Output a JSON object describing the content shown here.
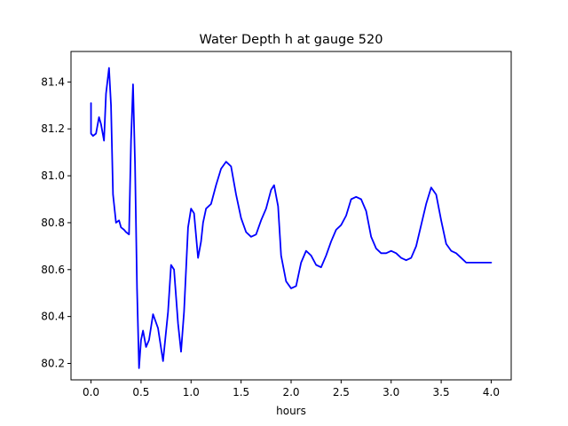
{
  "chart_data": {
    "type": "line",
    "title": "Water Depth h at gauge 520",
    "xlabel": "hours",
    "ylabel": "",
    "xlim": [
      -0.2,
      4.2
    ],
    "ylim": [
      80.13,
      81.53
    ],
    "xticks": [
      0.0,
      0.5,
      1.0,
      1.5,
      2.0,
      2.5,
      3.0,
      3.5,
      4.0
    ],
    "xtick_labels": [
      "0.0",
      "0.5",
      "1.0",
      "1.5",
      "2.0",
      "2.5",
      "3.0",
      "3.5",
      "4.0"
    ],
    "yticks": [
      80.2,
      80.4,
      80.6,
      80.8,
      81.0,
      81.2,
      81.4
    ],
    "ytick_labels": [
      "80.2",
      "80.4",
      "80.6",
      "80.8",
      "81.0",
      "81.2",
      "81.4"
    ],
    "grid": false,
    "color": "#0000ff",
    "series": [
      {
        "name": "",
        "x": [
          0.0,
          0.0,
          0.02,
          0.05,
          0.08,
          0.1,
          0.13,
          0.15,
          0.18,
          0.2,
          0.22,
          0.25,
          0.28,
          0.3,
          0.33,
          0.35,
          0.38,
          0.4,
          0.42,
          0.44,
          0.46,
          0.48,
          0.5,
          0.52,
          0.55,
          0.58,
          0.62,
          0.67,
          0.72,
          0.77,
          0.8,
          0.83,
          0.87,
          0.9,
          0.93,
          0.97,
          1.0,
          1.03,
          1.07,
          1.1,
          1.12,
          1.15,
          1.2,
          1.25,
          1.3,
          1.35,
          1.4,
          1.45,
          1.5,
          1.55,
          1.6,
          1.65,
          1.7,
          1.75,
          1.8,
          1.83,
          1.87,
          1.9,
          1.95,
          2.0,
          2.05,
          2.1,
          2.15,
          2.2,
          2.25,
          2.3,
          2.35,
          2.4,
          2.45,
          2.5,
          2.55,
          2.6,
          2.65,
          2.7,
          2.75,
          2.8,
          2.85,
          2.9,
          2.95,
          3.0,
          3.05,
          3.1,
          3.15,
          3.2,
          3.25,
          3.3,
          3.35,
          3.4,
          3.45,
          3.5,
          3.55,
          3.6,
          3.65,
          3.7,
          3.75,
          3.8,
          3.85,
          3.9,
          3.95,
          4.0
        ],
        "y": [
          81.31,
          81.18,
          81.17,
          81.18,
          81.25,
          81.22,
          81.15,
          81.35,
          81.46,
          81.3,
          80.92,
          80.8,
          80.81,
          80.78,
          80.77,
          80.76,
          80.75,
          81.15,
          81.39,
          81.05,
          80.52,
          80.18,
          80.3,
          80.34,
          80.27,
          80.3,
          80.41,
          80.35,
          80.21,
          80.42,
          80.62,
          80.6,
          80.37,
          80.25,
          80.42,
          80.78,
          80.86,
          80.84,
          80.65,
          80.72,
          80.8,
          80.86,
          80.88,
          80.96,
          81.03,
          81.06,
          81.04,
          80.92,
          80.82,
          80.76,
          80.74,
          80.75,
          80.81,
          80.86,
          80.94,
          80.96,
          80.87,
          80.66,
          80.55,
          80.52,
          80.53,
          80.63,
          80.68,
          80.66,
          80.62,
          80.61,
          80.66,
          80.72,
          80.77,
          80.79,
          80.83,
          80.9,
          80.91,
          80.9,
          80.85,
          80.74,
          80.69,
          80.67,
          80.67,
          80.68,
          80.67,
          80.65,
          80.64,
          80.65,
          80.7,
          80.79,
          80.88,
          80.95,
          80.92,
          80.81,
          80.71,
          80.68,
          80.67,
          80.65,
          80.63,
          80.63,
          80.63,
          80.63,
          80.63,
          80.63
        ]
      }
    ]
  }
}
